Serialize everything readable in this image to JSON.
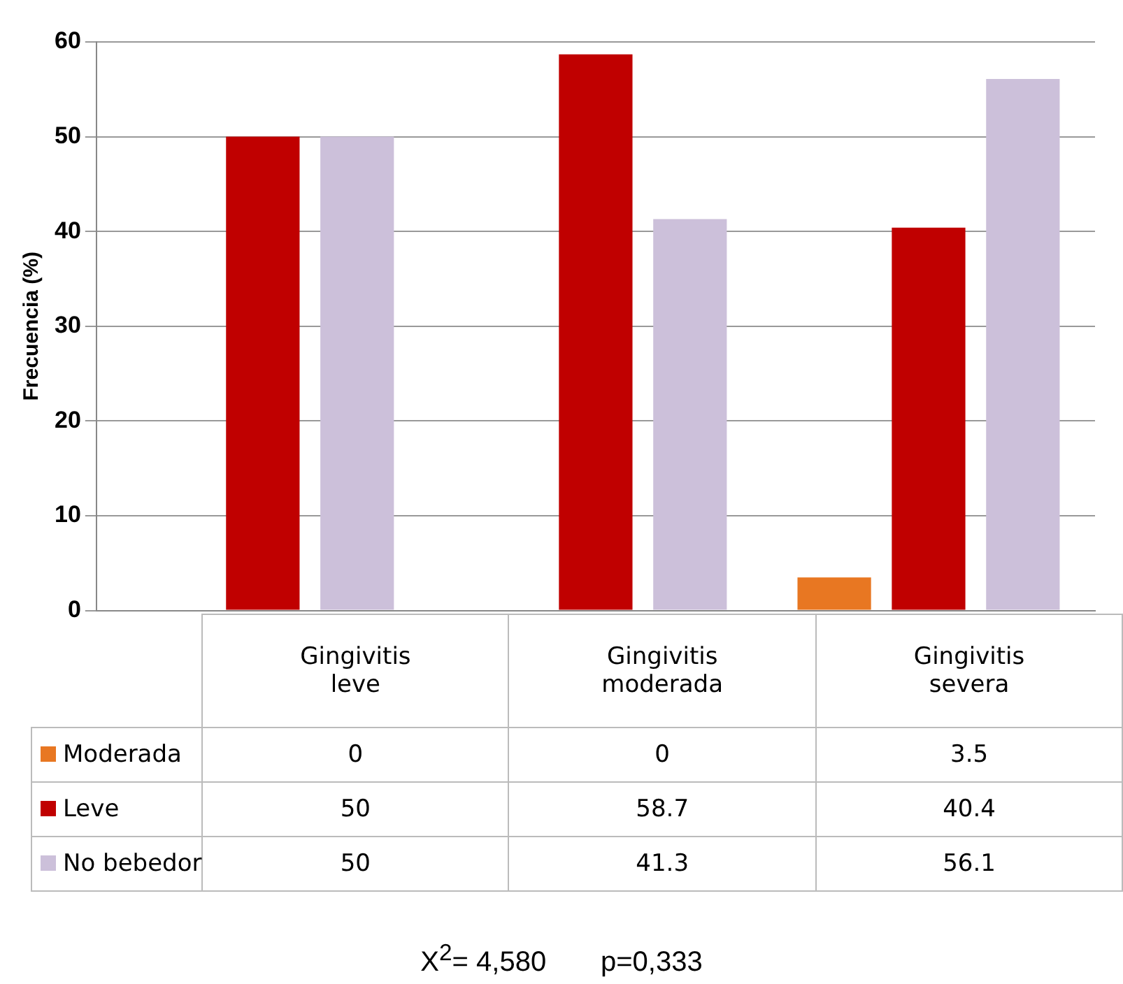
{
  "chart_data": {
    "type": "bar",
    "ylabel": "Frecuencia (%)",
    "categories": [
      "Gingivitis leve",
      "Gingivitis moderada",
      "Gingivitis severa"
    ],
    "series": [
      {
        "name": "Moderada",
        "color": "#e87722",
        "values": [
          0,
          0,
          3.5
        ]
      },
      {
        "name": "Leve",
        "color": "#c00000",
        "values": [
          50,
          58.7,
          40.4
        ]
      },
      {
        "name": "No bebedor",
        "color": "#ccc0da",
        "values": [
          50,
          41.3,
          56.1
        ]
      }
    ],
    "ylim": [
      0,
      60
    ],
    "yticks": [
      0,
      10,
      20,
      30,
      40,
      50,
      60
    ],
    "grid": "y",
    "legend": "bottom",
    "data_labels": true,
    "annotations": [
      "X$^{2}$= 4,580       p=0,333"
    ]
  }
}
